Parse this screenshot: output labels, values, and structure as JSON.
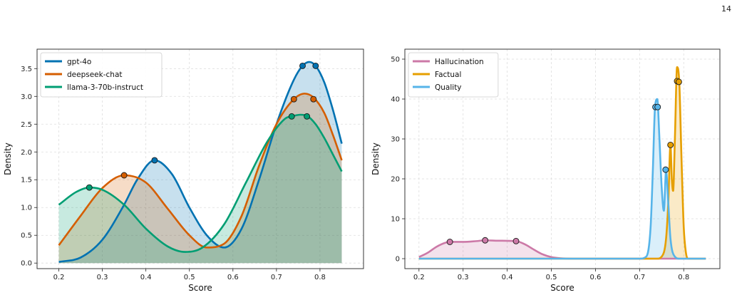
{
  "page_number": "14",
  "chart_data": [
    {
      "type": "line",
      "fill": true,
      "xlabel": "Score",
      "ylabel": "Density",
      "xlim": [
        0.15,
        0.9
      ],
      "ylim": [
        -0.1,
        3.85
      ],
      "xticks": [
        "0.2",
        "0.3",
        "0.4",
        "0.5",
        "0.6",
        "0.7",
        "0.8"
      ],
      "yticks": [
        "0.0",
        "0.5",
        "1.0",
        "1.5",
        "2.0",
        "2.5",
        "3.0",
        "3.5"
      ],
      "grid": true,
      "legend": "top-left",
      "series": [
        {
          "name": "gpt-4o",
          "color": "#0072b2",
          "x": [
            0.2,
            0.25,
            0.3,
            0.35,
            0.38,
            0.42,
            0.46,
            0.5,
            0.54,
            0.58,
            0.62,
            0.66,
            0.7,
            0.74,
            0.76,
            0.775,
            0.79,
            0.81,
            0.83,
            0.85
          ],
          "y": [
            0.02,
            0.1,
            0.42,
            1.05,
            1.5,
            1.85,
            1.6,
            1.0,
            0.5,
            0.28,
            0.62,
            1.5,
            2.5,
            3.3,
            3.55,
            3.62,
            3.55,
            3.25,
            2.75,
            2.15
          ],
          "points": [
            [
              0.42,
              1.85
            ],
            [
              0.76,
              3.55
            ],
            [
              0.79,
              3.55
            ]
          ]
        },
        {
          "name": "deepseek-chat",
          "color": "#d55e00",
          "x": [
            0.2,
            0.25,
            0.3,
            0.35,
            0.4,
            0.45,
            0.5,
            0.54,
            0.58,
            0.62,
            0.66,
            0.7,
            0.74,
            0.765,
            0.785,
            0.81,
            0.83,
            0.85
          ],
          "y": [
            0.32,
            0.85,
            1.35,
            1.58,
            1.45,
            0.98,
            0.5,
            0.28,
            0.35,
            0.85,
            1.75,
            2.5,
            2.95,
            3.05,
            2.98,
            2.7,
            2.3,
            1.85
          ],
          "points": [
            [
              0.35,
              1.58
            ],
            [
              0.74,
              2.95
            ],
            [
              0.785,
              2.95
            ]
          ]
        },
        {
          "name": "llama-3-70b-instruct",
          "color": "#009e73",
          "x": [
            0.2,
            0.24,
            0.27,
            0.3,
            0.35,
            0.4,
            0.45,
            0.49,
            0.53,
            0.58,
            0.63,
            0.68,
            0.72,
            0.74,
            0.755,
            0.77,
            0.79,
            0.81,
            0.83,
            0.85
          ],
          "y": [
            1.05,
            1.28,
            1.36,
            1.32,
            1.05,
            0.62,
            0.3,
            0.2,
            0.28,
            0.7,
            1.45,
            2.2,
            2.6,
            2.65,
            2.67,
            2.65,
            2.5,
            2.25,
            1.95,
            1.65
          ],
          "points": [
            [
              0.27,
              1.36
            ],
            [
              0.735,
              2.64
            ],
            [
              0.77,
              2.64
            ]
          ]
        }
      ]
    },
    {
      "type": "line",
      "fill": true,
      "xlabel": "Score",
      "ylabel": "Density",
      "xlim": [
        0.168,
        0.882
      ],
      "ylim": [
        -2.5,
        52.5
      ],
      "xticks": [
        "0.2",
        "0.3",
        "0.4",
        "0.5",
        "0.6",
        "0.7",
        "0.8"
      ],
      "yticks": [
        "0",
        "10",
        "20",
        "30",
        "40",
        "50"
      ],
      "grid": true,
      "legend": "top-left",
      "series": [
        {
          "name": "Hallucination",
          "color": "#cc79a7",
          "x": [
            0.2,
            0.22,
            0.24,
            0.26,
            0.27,
            0.3,
            0.33,
            0.35,
            0.38,
            0.42,
            0.44,
            0.46,
            0.48,
            0.5,
            0.52,
            0.55,
            0.6,
            0.65,
            0.7,
            0.75,
            0.8,
            0.85
          ],
          "y": [
            0.4,
            1.5,
            3.0,
            4.0,
            4.2,
            4.2,
            4.4,
            4.6,
            4.5,
            4.4,
            3.6,
            2.3,
            1.1,
            0.4,
            0.1,
            0,
            0,
            0,
            0,
            0,
            0,
            0
          ],
          "points": [
            [
              0.27,
              4.2
            ],
            [
              0.35,
              4.6
            ],
            [
              0.42,
              4.4
            ]
          ]
        },
        {
          "name": "Factual",
          "color": "#e69f00",
          "x": [
            0.2,
            0.5,
            0.74,
            0.75,
            0.76,
            0.765,
            0.77,
            0.773,
            0.776,
            0.78,
            0.785,
            0.79,
            0.795,
            0.8,
            0.805,
            0.81,
            0.85
          ],
          "y": [
            0,
            0,
            0,
            0.5,
            5,
            14,
            28.5,
            20,
            17,
            30,
            48,
            44,
            25,
            8,
            1.5,
            0,
            0
          ],
          "points": [
            [
              0.77,
              28.5
            ],
            [
              0.785,
              44.5
            ],
            [
              0.789,
              44.3
            ]
          ]
        },
        {
          "name": "Quality",
          "color": "#56b4e9",
          "x": [
            0.2,
            0.5,
            0.7,
            0.715,
            0.725,
            0.73,
            0.735,
            0.74,
            0.745,
            0.75,
            0.755,
            0.76,
            0.765,
            0.77,
            0.78,
            0.79,
            0.8,
            0.85
          ],
          "y": [
            0,
            0,
            0,
            0.5,
            8,
            22,
            38,
            40,
            30,
            18,
            12,
            22,
            14,
            5,
            0.5,
            0,
            0,
            0
          ],
          "points": [
            [
              0.736,
              38
            ],
            [
              0.741,
              38
            ],
            [
              0.759,
              22.3
            ]
          ]
        }
      ]
    }
  ]
}
